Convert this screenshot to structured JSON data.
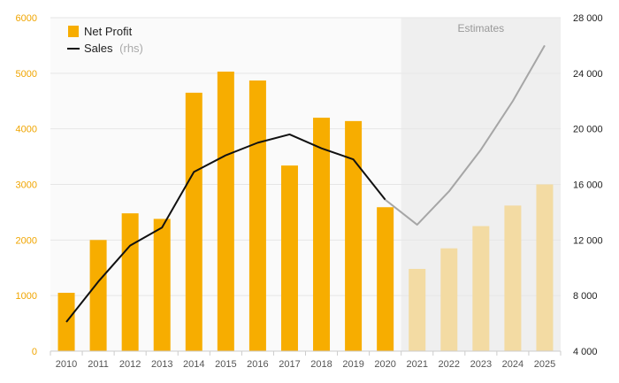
{
  "chart_data": {
    "type": "bar+line",
    "categories": [
      "2010",
      "2011",
      "2012",
      "2013",
      "2014",
      "2015",
      "2016",
      "2017",
      "2018",
      "2019",
      "2020",
      "2021",
      "2022",
      "2023",
      "2024",
      "2025"
    ],
    "series": [
      {
        "name": "Net Profit",
        "axis": "left",
        "type": "bar",
        "values": [
          1050,
          2000,
          2480,
          2380,
          4650,
          5030,
          4870,
          3340,
          4200,
          4140,
          2590,
          1480,
          1850,
          2250,
          2620,
          3000
        ]
      },
      {
        "name": "Sales",
        "axis": "right",
        "type": "line",
        "values": [
          6100,
          9000,
          11600,
          12900,
          16900,
          18100,
          19000,
          19600,
          18600,
          17800,
          14900,
          13100,
          15500,
          18500,
          22000,
          26000
        ]
      }
    ],
    "estimate_start_index": 11,
    "estimates_label": "Estimates",
    "left_axis": {
      "min": 0,
      "max": 6000,
      "ticks": [
        0,
        1000,
        2000,
        3000,
        4000,
        5000,
        6000
      ],
      "tick_labels": [
        "0",
        "1000",
        "2000",
        "3000",
        "4000",
        "5000",
        "6000"
      ]
    },
    "right_axis": {
      "min": 4000,
      "max": 28000,
      "ticks": [
        4000,
        8000,
        12000,
        16000,
        20000,
        24000,
        28000
      ],
      "tick_labels": [
        "4 000",
        "8 000",
        "12 000",
        "16 000",
        "20 000",
        "24 000",
        "28 000"
      ]
    },
    "legend": {
      "position": "top-left",
      "bar_label": "Net Profit",
      "line_label": "Sales",
      "line_suffix": "(rhs)"
    },
    "colors": {
      "bar": "#f7ad00",
      "bar_estimate": "#f3dba3",
      "line": "#111111",
      "line_estimate": "#a6a6a6",
      "estimate_bg": "#efefef",
      "plot_bg": "#fafafa",
      "grid": "#e6e6e6"
    }
  }
}
